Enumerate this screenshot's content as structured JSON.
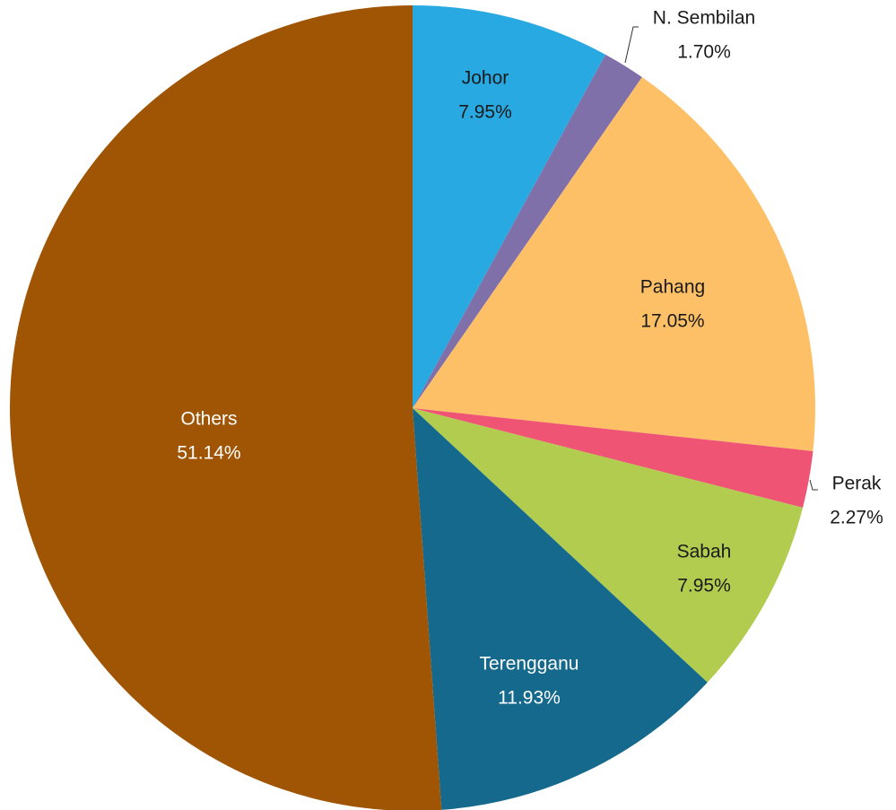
{
  "chart_data": {
    "type": "pie",
    "categories": [
      "Johor",
      "N. Sembilan",
      "Pahang",
      "Perak",
      "Sabah",
      "Terengganu",
      "Others"
    ],
    "values": [
      7.95,
      1.7,
      17.05,
      2.27,
      7.95,
      11.93,
      51.14
    ],
    "value_labels": [
      "7.95%",
      "1.70%",
      "17.05%",
      "2.27%",
      "7.95%",
      "11.93%",
      "51.14%"
    ],
    "colors": [
      "#29a9e1",
      "#8070aa",
      "#fdc066",
      "#f05474",
      "#b1cc4e",
      "#15698c",
      "#a05504"
    ]
  }
}
